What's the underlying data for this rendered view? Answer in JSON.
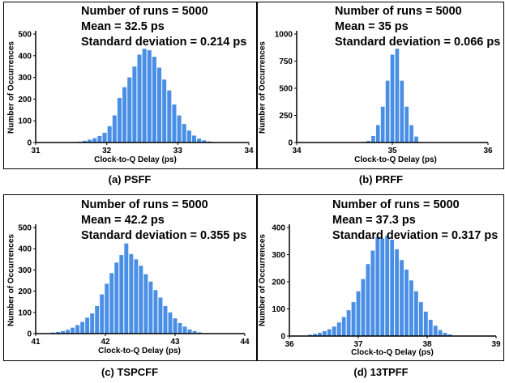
{
  "chart_data": [
    {
      "type": "bar",
      "caption": "(a) PSFF",
      "stats": [
        "Number of runs = 5000",
        "Mean = 32.5 ps",
        "Standard deviation = 0.214 ps"
      ],
      "xlabel": "Clock-to-Q Delay (ps)",
      "ylabel": "Number of Occurrences",
      "xlim": [
        31,
        34
      ],
      "xticks": [
        "31",
        "32",
        "33",
        "34"
      ],
      "ylim": [
        0,
        500
      ],
      "yticks": [
        "0",
        "100",
        "200",
        "300",
        "400",
        "500"
      ],
      "bin_width": 0.0714,
      "x": [
        31.55,
        31.62,
        31.69,
        31.76,
        31.83,
        31.9,
        31.97,
        32.04,
        32.11,
        32.18,
        32.25,
        32.32,
        32.39,
        32.46,
        32.53,
        32.6,
        32.67,
        32.74,
        32.81,
        32.88,
        32.95,
        33.02,
        33.09,
        33.16,
        33.23,
        33.3,
        33.37,
        33.44
      ],
      "values": [
        2,
        4,
        8,
        13,
        20,
        30,
        45,
        75,
        125,
        205,
        255,
        300,
        350,
        405,
        432,
        425,
        395,
        345,
        290,
        240,
        175,
        125,
        85,
        55,
        32,
        18,
        10,
        5
      ]
    },
    {
      "type": "bar",
      "caption": "(b) PRFF",
      "stats": [
        "Number of runs = 5000",
        "Mean = 35 ps",
        "Standard deviation = 0.066 ps"
      ],
      "xlabel": "Clock-to-Q Delay (ps)",
      "ylabel": "Number of Occurrences",
      "xlim": [
        34,
        36
      ],
      "xticks": [
        "34",
        "35",
        "36"
      ],
      "ylim": [
        0,
        1000
      ],
      "yticks": [
        "0",
        "250",
        "500",
        "750",
        "1000"
      ],
      "bin_width": 0.05,
      "x": [
        34.7,
        34.75,
        34.8,
        34.85,
        34.9,
        34.95,
        35.0,
        35.05,
        35.1,
        35.15,
        35.2,
        35.25
      ],
      "values": [
        5,
        15,
        60,
        160,
        330,
        570,
        810,
        865,
        570,
        330,
        160,
        55
      ]
    },
    {
      "type": "bar",
      "caption": "(c) TSPCFF",
      "stats": [
        "Number of runs = 5000",
        "Mean = 42.2 ps",
        "Standard deviation = 0.355 ps"
      ],
      "xlabel": "Clock-to-Q Delay (ps)",
      "ylabel": "Number of Occurrences",
      "xlim": [
        41,
        44
      ],
      "xticks": [
        "41",
        "42",
        "43",
        "44"
      ],
      "ylim": [
        0,
        500
      ],
      "yticks": [
        "0",
        "100",
        "200",
        "300",
        "400",
        "500"
      ],
      "bin_width": 0.0714,
      "x": [
        41.25,
        41.32,
        41.39,
        41.46,
        41.53,
        41.6,
        41.67,
        41.74,
        41.81,
        41.88,
        41.95,
        42.02,
        42.09,
        42.16,
        42.23,
        42.3,
        42.37,
        42.44,
        42.51,
        42.58,
        42.65,
        42.72,
        42.79,
        42.86,
        42.93,
        43.0,
        43.07,
        43.14,
        43.21,
        43.28,
        43.35
      ],
      "values": [
        5,
        8,
        12,
        18,
        28,
        40,
        55,
        75,
        95,
        130,
        185,
        235,
        285,
        335,
        370,
        425,
        375,
        350,
        320,
        280,
        245,
        205,
        170,
        130,
        100,
        72,
        50,
        33,
        20,
        12,
        6
      ]
    },
    {
      "type": "bar",
      "caption": "(d) 13TPFF",
      "stats": [
        "Number of runs = 5000",
        "Mean = 37.3 ps",
        "Standard deviation = 0.317 ps"
      ],
      "xlabel": "Clock-to-Q Delay (ps)",
      "ylabel": "Number of Occurrences",
      "xlim": [
        36,
        39
      ],
      "xticks": [
        "36",
        "37",
        "38",
        "39"
      ],
      "ylim": [
        0,
        400
      ],
      "yticks": [
        "0",
        "100",
        "200",
        "300",
        "400"
      ],
      "bin_width": 0.0714,
      "x": [
        36.3,
        36.37,
        36.44,
        36.51,
        36.58,
        36.65,
        36.72,
        36.79,
        36.86,
        36.93,
        37.0,
        37.07,
        37.14,
        37.21,
        37.28,
        37.35,
        37.42,
        37.49,
        37.56,
        37.63,
        37.7,
        37.77,
        37.84,
        37.91,
        37.98,
        38.05,
        38.12,
        38.19,
        38.26,
        38.33
      ],
      "values": [
        5,
        8,
        12,
        18,
        25,
        35,
        50,
        70,
        95,
        125,
        165,
        210,
        265,
        315,
        365,
        360,
        370,
        355,
        320,
        280,
        245,
        205,
        165,
        125,
        90,
        60,
        38,
        22,
        12,
        6
      ]
    }
  ]
}
